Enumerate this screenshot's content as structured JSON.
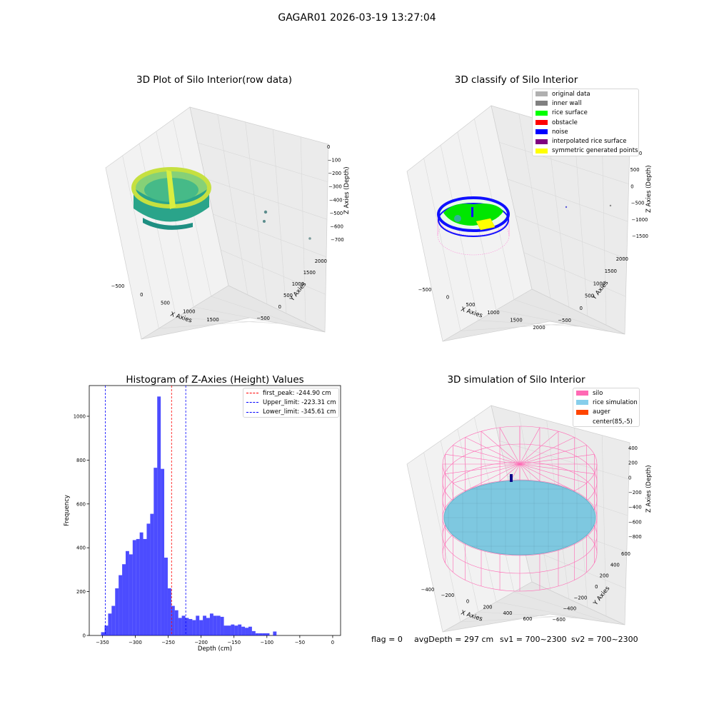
{
  "figure": {
    "title": "GAGAR01 2026-03-19 13:27:04",
    "footer": {
      "flag": "flag = 0",
      "avg_depth": "avgDepth = 297 cm",
      "sv1": "sv1 = 700~2300",
      "sv2": "sv2 = 700~2300"
    }
  },
  "panels": {
    "raw": {
      "title": "3D Plot of Silo Interior(row data)",
      "xlabel": "X Axies",
      "ylabel": "Y Axies",
      "zlabel": "Z Axies (Depth)",
      "xticks": [
        "−500",
        "0",
        "500",
        "1000",
        "1500"
      ],
      "yticks": [
        "−500",
        "0",
        "500",
        "1000",
        "1500",
        "2000"
      ],
      "zticks": [
        "0",
        "−100",
        "−200",
        "−300",
        "−400",
        "−500",
        "−600",
        "−700"
      ]
    },
    "classify": {
      "title": "3D classify of Silo Interior",
      "xlabel": "X Axies",
      "ylabel": "Y Axies",
      "zlabel": "Z Axies (Depth)",
      "xticks": [
        "−500",
        "0",
        "500",
        "1000",
        "1500",
        "2000"
      ],
      "yticks": [
        "−500",
        "0",
        "500",
        "1000",
        "1500",
        "2000"
      ],
      "zticks": [
        "1000",
        "500",
        "0",
        "−500",
        "−1000",
        "−1500"
      ],
      "legend": [
        {
          "label": "original data",
          "color": "#b0b0b0"
        },
        {
          "label": "inner wall",
          "color": "#808080"
        },
        {
          "label": "rice surface",
          "color": "#00ff00"
        },
        {
          "label": "obstacle",
          "color": "#ff0000"
        },
        {
          "label": "noise",
          "color": "#0000ff"
        },
        {
          "label": "interpolated rice surface",
          "color": "#800080"
        },
        {
          "label": "symmetric generated points",
          "color": "#ffff00"
        }
      ]
    },
    "simulation": {
      "title": "3D simulation of Silo Interior",
      "xlabel": "X Axies",
      "ylabel": "Y Axies",
      "zlabel": "Z Axies (Depth)",
      "xticks": [
        "−400",
        "−200",
        "0",
        "200",
        "400",
        "600"
      ],
      "yticks": [
        "−600",
        "−400",
        "−200",
        "0",
        "200",
        "400",
        "600"
      ],
      "zticks": [
        "400",
        "200",
        "0",
        "−200",
        "−400",
        "−600",
        "−800"
      ],
      "legend": [
        {
          "label": "silo",
          "color": "#ff69b4"
        },
        {
          "label": "rice simulation",
          "color": "#87ceeb"
        },
        {
          "label": "auger",
          "color": "#ff4500"
        },
        {
          "label": "center(85,-5)",
          "color": "#ffffff"
        }
      ]
    }
  },
  "chart_data": [
    {
      "type": "bar",
      "title": "Histogram of Z-Axies (Height) Values",
      "xlabel": "Depth (cm)",
      "ylabel": "Frequency",
      "xlim": [
        -370,
        12
      ],
      "ylim": [
        0,
        1140
      ],
      "bar_color": "#0000ff",
      "xticks": [
        -350,
        -300,
        -250,
        -200,
        -150,
        -100,
        -50,
        0
      ],
      "yticks": [
        0,
        200,
        400,
        600,
        800,
        1000
      ],
      "bin_start": -352,
      "bin_width": 5.333,
      "values": [
        15,
        45,
        100,
        135,
        215,
        275,
        325,
        385,
        370,
        435,
        440,
        470,
        440,
        510,
        555,
        765,
        1090,
        760,
        355,
        215,
        135,
        115,
        80,
        90,
        80,
        75,
        70,
        90,
        70,
        90,
        80,
        100,
        90,
        90,
        85,
        45,
        45,
        50,
        45,
        50,
        40,
        35,
        40,
        20,
        10,
        10,
        10,
        10,
        0,
        18
      ],
      "lines": [
        {
          "label": "first_peak: -244.90 cm",
          "x": -244.9,
          "color": "#ff0000"
        },
        {
          "label": "Upper_limit: -223.31 cm",
          "x": -223.31,
          "color": "#0000ff"
        },
        {
          "label": "Lower_limit: -345.61 cm",
          "x": -345.61,
          "color": "#0000ff"
        }
      ]
    }
  ]
}
